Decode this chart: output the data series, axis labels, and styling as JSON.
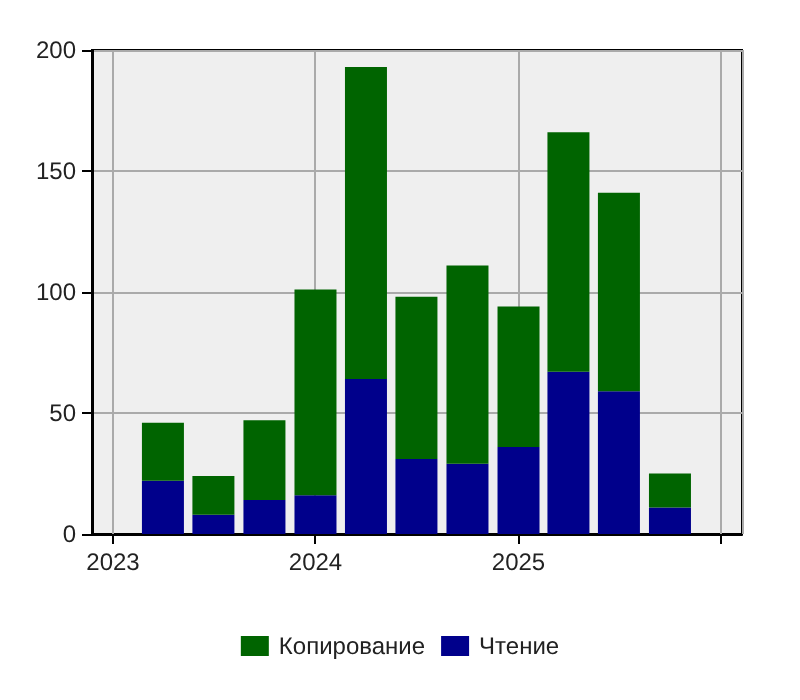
{
  "chart_data": {
    "type": "bar",
    "stacked": true,
    "x": [
      "2023-04",
      "2023-07",
      "2023-10",
      "2024-01",
      "2024-04",
      "2024-07",
      "2024-10",
      "2025-01",
      "2025-04",
      "2025-07",
      "2025-10"
    ],
    "series": [
      {
        "name": "Чтение",
        "color": "#00008b",
        "values": [
          22,
          8,
          14,
          16,
          64,
          31,
          29,
          36,
          67,
          59,
          11
        ]
      },
      {
        "name": "Копирование",
        "color": "#006400",
        "values": [
          24,
          16,
          33,
          85,
          129,
          67,
          82,
          58,
          99,
          82,
          14
        ]
      }
    ],
    "xlim": [
      "2023-01",
      "2026-01"
    ],
    "xticks": [
      "2023",
      "2024",
      "2025"
    ],
    "ylim": [
      0,
      200
    ],
    "yticks": [
      0,
      50,
      100,
      150,
      200
    ],
    "grid": true,
    "legend": "bottom"
  }
}
